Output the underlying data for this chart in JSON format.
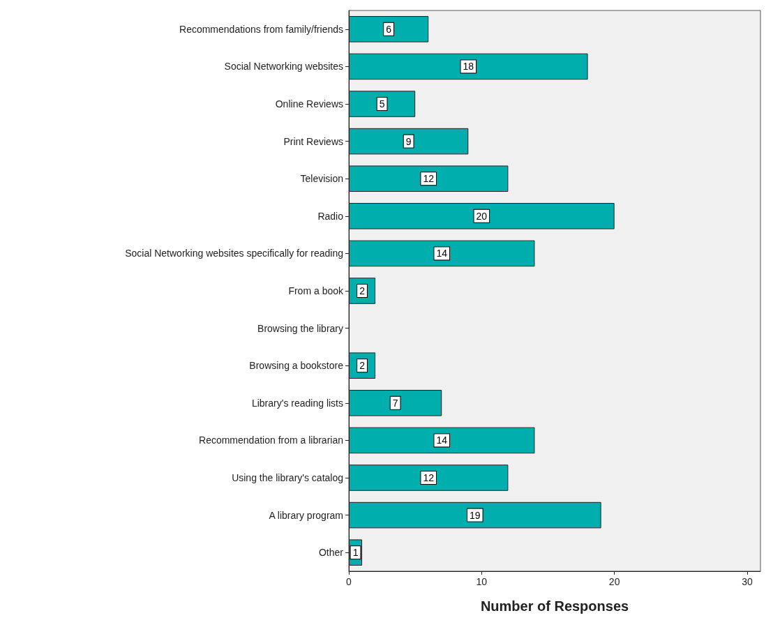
{
  "chart_data": {
    "type": "bar",
    "orientation": "horizontal",
    "xlabel": "Number of Responses",
    "categories": [
      "Recommendations from family/friends",
      "Social Networking websites",
      "Online Reviews",
      "Print Reviews",
      "Television",
      "Radio",
      "Social Networking websites specifically for reading",
      "From a book",
      "Browsing the library",
      "Browsing a bookstore",
      "Library's reading lists",
      "Recommendation from a librarian",
      "Using the library's catalog",
      "A library program",
      "Other"
    ],
    "values": [
      6,
      18,
      5,
      9,
      12,
      20,
      14,
      2,
      null,
      2,
      7,
      14,
      12,
      19,
      1
    ],
    "color": "#00aeae",
    "xlim": [
      0,
      31
    ],
    "xticks": [
      0,
      10,
      20,
      30
    ],
    "data_labels": true
  }
}
